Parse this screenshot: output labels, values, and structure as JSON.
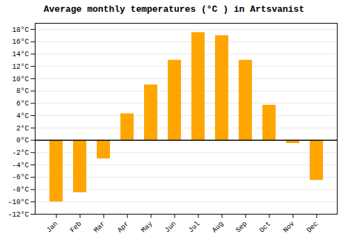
{
  "chart_data": {
    "type": "bar",
    "title": "Average monthly temperatures (°C ) in Artsvanist",
    "categories": [
      "Jan",
      "Feb",
      "Mar",
      "Apr",
      "May",
      "Jun",
      "Jul",
      "Aug",
      "Sep",
      "Oct",
      "Nov",
      "Dec"
    ],
    "values": [
      -10,
      -8.5,
      -3,
      4.3,
      9,
      13,
      17.5,
      17,
      13,
      5.7,
      -0.5,
      -6.5
    ],
    "color": "#FFA500",
    "ylim": [
      -12,
      19
    ],
    "yticks": [
      {
        "value": -12,
        "label": "-12°C"
      },
      {
        "value": -10,
        "label": "-10°C"
      },
      {
        "value": -8,
        "label": "-8°C"
      },
      {
        "value": -6,
        "label": "-6°C"
      },
      {
        "value": -4,
        "label": "-4°C"
      },
      {
        "value": -2,
        "label": "-2°C"
      },
      {
        "value": 0,
        "label": "0°C"
      },
      {
        "value": 2,
        "label": "2°C"
      },
      {
        "value": 4,
        "label": "4°C"
      },
      {
        "value": 6,
        "label": "6°C"
      },
      {
        "value": 8,
        "label": "8°C"
      },
      {
        "value": 10,
        "label": "10°C"
      },
      {
        "value": 12,
        "label": "12°C"
      },
      {
        "value": 14,
        "label": "14°C"
      },
      {
        "value": 16,
        "label": "16°C"
      },
      {
        "value": 18,
        "label": "18°C"
      }
    ],
    "grid": true
  }
}
